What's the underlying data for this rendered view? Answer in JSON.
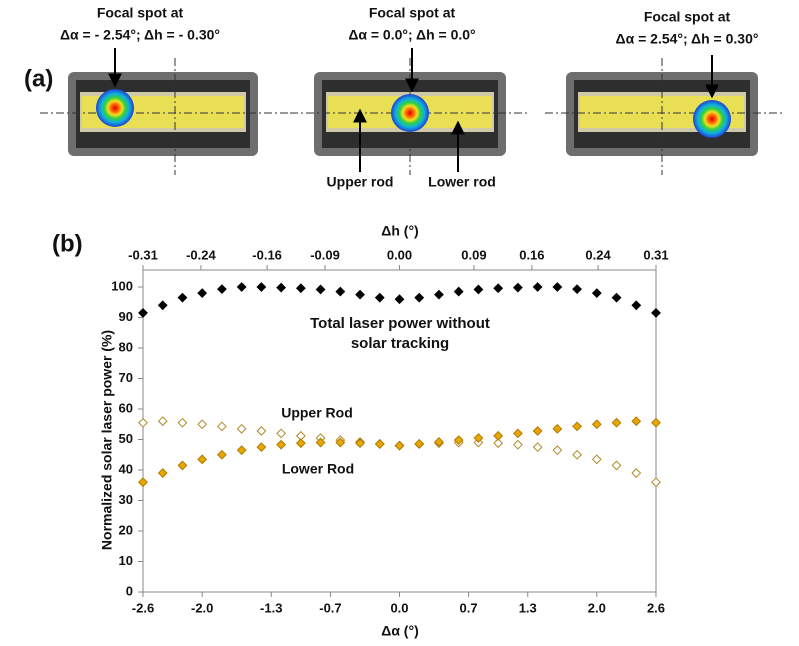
{
  "panel_a": {
    "label": "(a)",
    "images": [
      {
        "caption_line1": "Focal spot at",
        "caption_line2": "Δα = - 2.54°; Δh = - 0.30°"
      },
      {
        "caption_line1": "Focal spot at",
        "caption_line2": "Δα = 0.0°; Δh = 0.0°"
      },
      {
        "caption_line1": "Focal spot at",
        "caption_line2": "Δα = 2.54°; Δh = 0.30°"
      }
    ],
    "rod_labels": [
      "Upper rod",
      "Lower rod"
    ]
  },
  "panel_b_label": "(b)",
  "chart_data": {
    "type": "scatter",
    "x_label": "Δα (°)",
    "x2_label": "Δh (°)",
    "y_label": "Normalized solar laser power (%)",
    "x": [
      -2.6,
      -2.4,
      -2.2,
      -2.0,
      -1.8,
      -1.6,
      -1.4,
      -1.2,
      -1.0,
      -0.8,
      -0.6,
      -0.4,
      -0.2,
      0.0,
      0.2,
      0.4,
      0.6,
      0.8,
      1.0,
      1.2,
      1.4,
      1.6,
      1.8,
      2.0,
      2.2,
      2.4,
      2.6
    ],
    "series": [
      {
        "name": "Total laser power without solar tracking",
        "color": "#000000",
        "hollow": false,
        "values": [
          91.5,
          94,
          96.5,
          98,
          99.3,
          100,
          100,
          99.8,
          99.6,
          99.2,
          98.5,
          97.5,
          96.5,
          96,
          96.5,
          97.5,
          98.5,
          99.2,
          99.6,
          99.8,
          100,
          100,
          99.3,
          98,
          96.5,
          94,
          91.5
        ]
      },
      {
        "name": "Upper Rod",
        "color": "#b08a2a",
        "hollow": true,
        "values": [
          55.5,
          56,
          55.5,
          55,
          54.3,
          53.5,
          52.8,
          52,
          51.2,
          50.5,
          49.8,
          49.2,
          48.6,
          48,
          48.5,
          48.8,
          49,
          49,
          48.8,
          48.3,
          47.5,
          46.5,
          45,
          43.5,
          41.5,
          39,
          36
        ]
      },
      {
        "name": "Lower Rod",
        "color": "#e6a800",
        "hollow": false,
        "values": [
          36,
          39,
          41.5,
          43.5,
          45,
          46.5,
          47.5,
          48.3,
          48.8,
          49,
          49,
          48.8,
          48.5,
          48,
          48.6,
          49.2,
          49.8,
          50.5,
          51.2,
          52,
          52.8,
          53.5,
          54.3,
          55,
          55.5,
          56,
          55.5
        ]
      }
    ],
    "xlim": [
      -2.6,
      2.6
    ],
    "xticks": [
      -2.6,
      {
        "value": -2,
        "label": "-2.0"
      },
      -1.3,
      -0.7,
      {
        "value": 0,
        "label": "0.0"
      },
      0.7,
      1.3,
      {
        "value": 2,
        "label": "2.0"
      },
      2.6
    ],
    "x2lim": [
      -0.31,
      0.31
    ],
    "x2ticks": [
      -0.31,
      -0.24,
      -0.16,
      -0.09,
      {
        "value": 0,
        "label": "0.00"
      },
      0.09,
      0.16,
      0.24,
      0.31
    ],
    "ylim": [
      0,
      100
    ],
    "yticks": [
      0,
      10,
      20,
      30,
      40,
      50,
      60,
      70,
      80,
      90,
      100
    ],
    "grid": false
  }
}
